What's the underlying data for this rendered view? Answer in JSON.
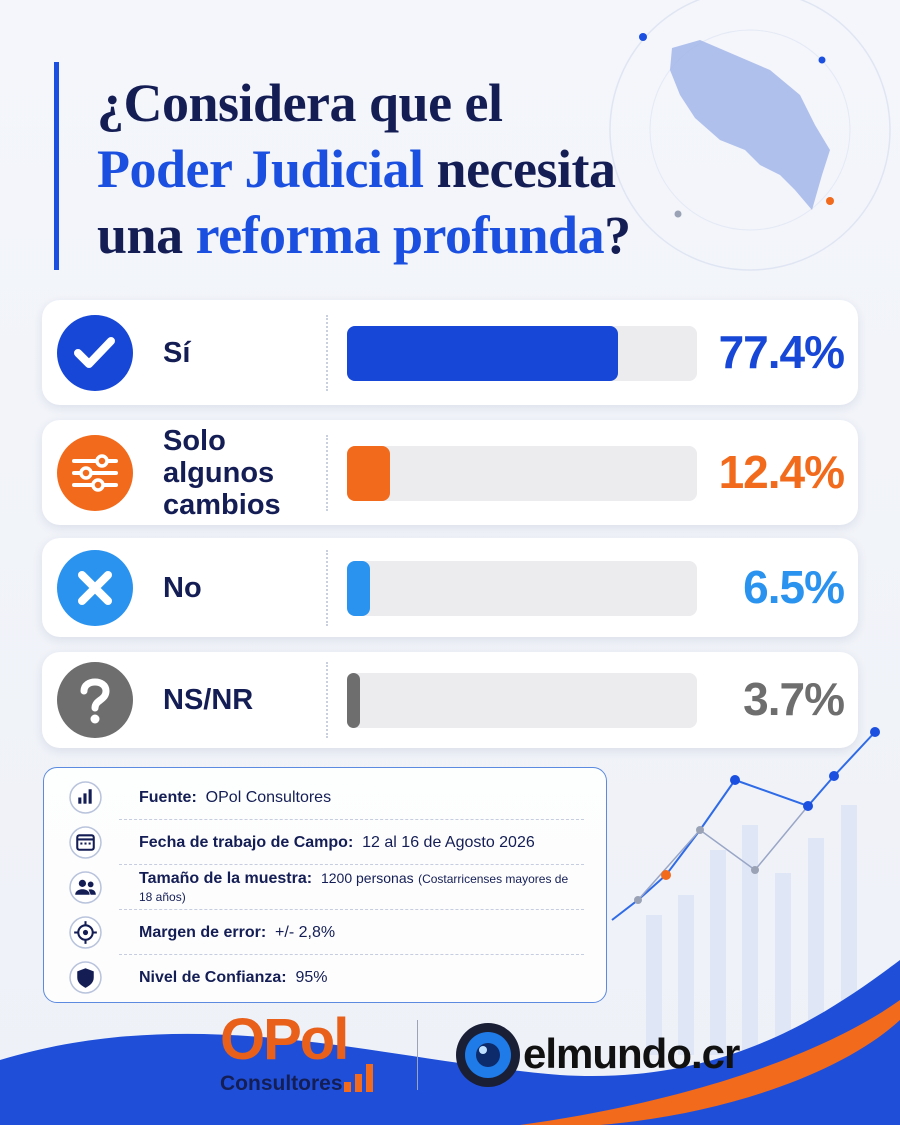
{
  "chart_data": {
    "type": "bar",
    "orientation": "horizontal",
    "title_lines": [
      [
        "¿Considera que el"
      ],
      [
        "Poder Judicial",
        "necesita"
      ],
      [
        "una",
        "reforma profunda",
        "?"
      ]
    ],
    "categories": [
      "Sí",
      "Solo algunos cambios",
      "No",
      "NS/NR"
    ],
    "values": [
      77.4,
      12.4,
      6.5,
      3.7
    ],
    "value_labels": [
      "77.4%",
      "12.4%",
      "6.5%",
      "3.7%"
    ],
    "colors": [
      "#1747d6",
      "#f26a1b",
      "#2a93ef",
      "#6e6e6e"
    ],
    "xlim": [
      0,
      100
    ]
  },
  "source_panel": {
    "rows": [
      {
        "label": "Fuente:",
        "value": "OPol Consultores"
      },
      {
        "label": "Fecha de trabajo de Campo:",
        "value": "12 al 16 de Agosto 2026"
      },
      {
        "label": "Tamaño de la muestra:",
        "value": "1200 personas",
        "note": "(Costarricenses mayores de 18 años)"
      },
      {
        "label": "Margen de error:",
        "value": "+/- 2,8%"
      },
      {
        "label": "Nivel de Confianza:",
        "value": "95%"
      }
    ]
  },
  "logos": {
    "opol": "OPol",
    "opol_sub": "Consultores",
    "elmundo": "elmundo.cr"
  }
}
